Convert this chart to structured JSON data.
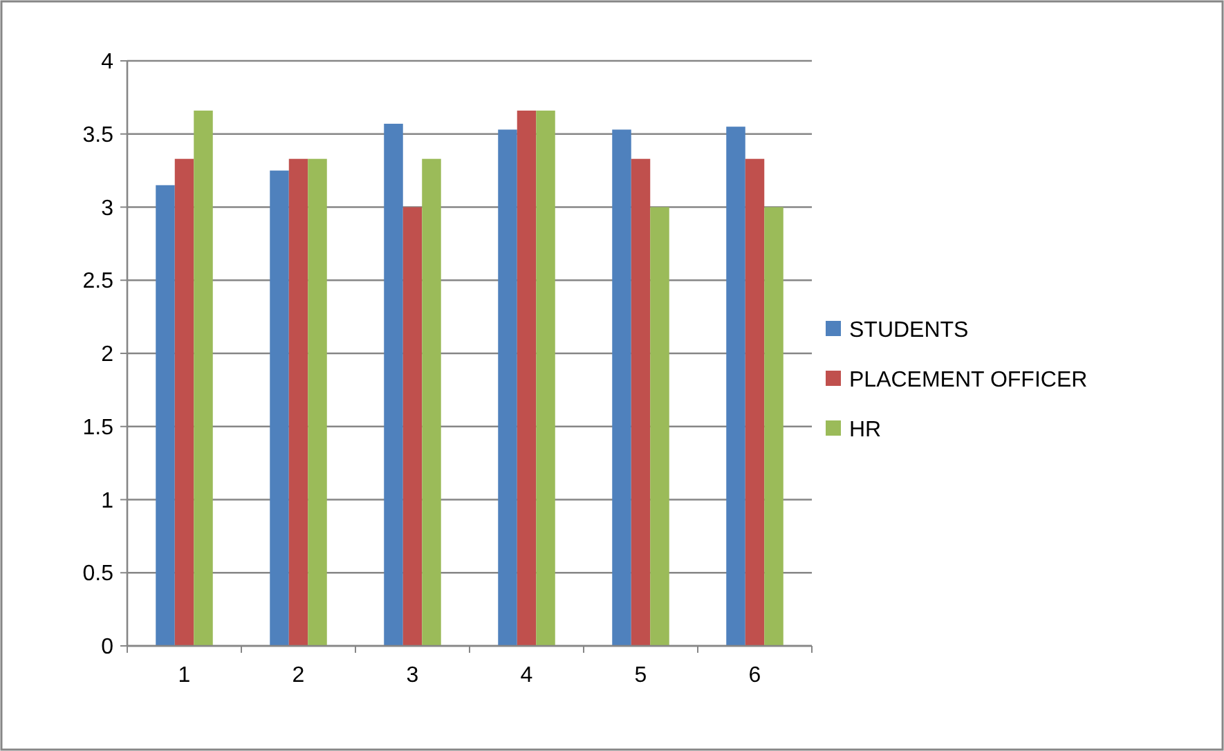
{
  "chart_data": {
    "type": "bar",
    "categories": [
      "1",
      "2",
      "3",
      "4",
      "5",
      "6"
    ],
    "series": [
      {
        "name": "STUDENTS",
        "color": "#4f81bd",
        "values": [
          3.15,
          3.25,
          3.57,
          3.53,
          3.53,
          3.55
        ]
      },
      {
        "name": "PLACEMENT OFFICER",
        "color": "#c0504d",
        "values": [
          3.33,
          3.33,
          3.0,
          3.66,
          3.33,
          3.33
        ]
      },
      {
        "name": "HR",
        "color": "#9bbb59",
        "values": [
          3.66,
          3.33,
          3.33,
          3.66,
          3.0,
          3.0
        ]
      }
    ],
    "ylim": [
      0,
      4
    ],
    "yticks": [
      0,
      0.5,
      1,
      1.5,
      2,
      2.5,
      3,
      3.5,
      4
    ],
    "grid": "y",
    "legend": "right"
  }
}
